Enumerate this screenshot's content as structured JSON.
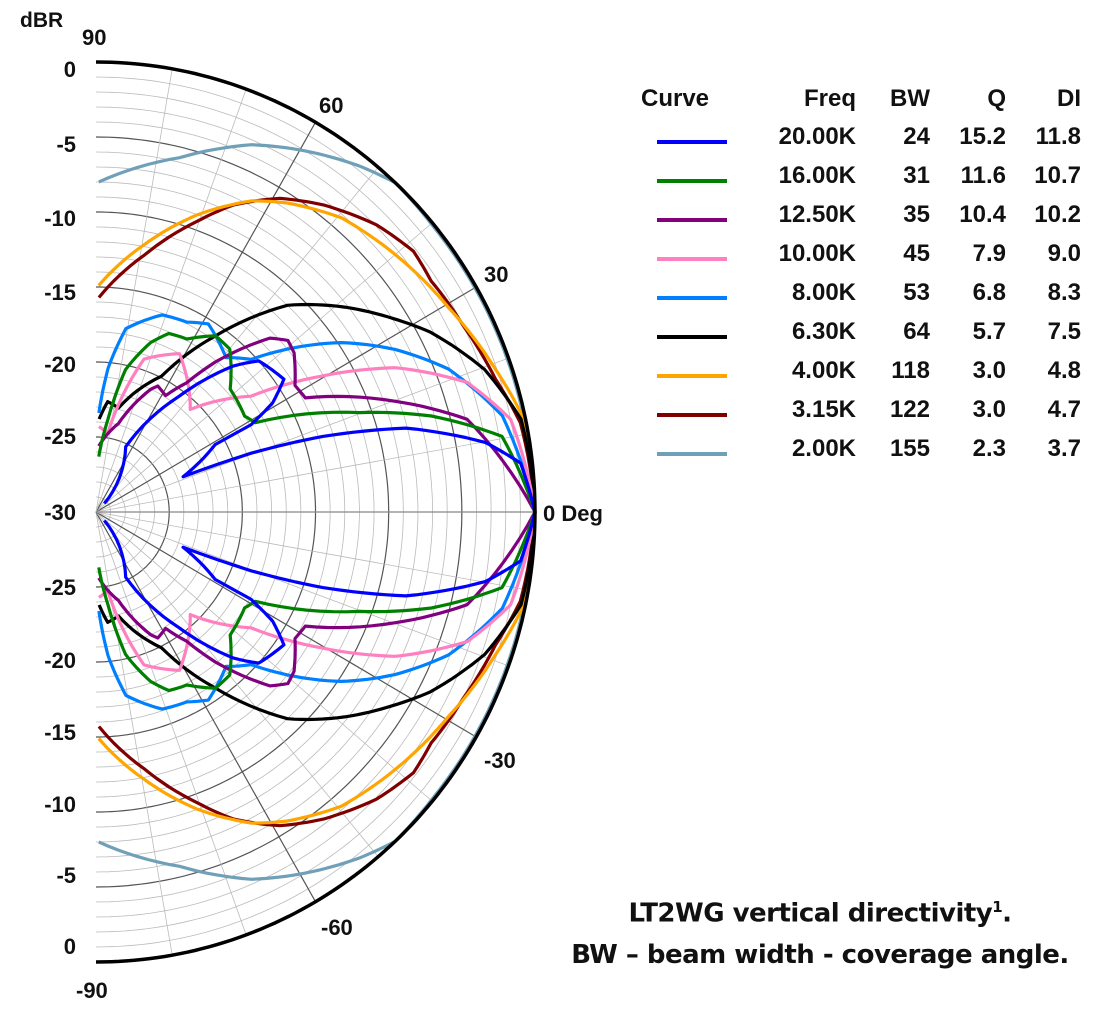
{
  "chart_data": {
    "type": "polar",
    "radial_label": "dBR",
    "radial_range": [
      -30,
      0
    ],
    "radial_tick_labels_upper": [
      "0",
      "-5",
      "-10",
      "-15",
      "-20",
      "-25"
    ],
    "radial_tick_label_center": "-30",
    "radial_tick_labels_lower": [
      "-25",
      "-20",
      "-15",
      "-10",
      "-5",
      "0"
    ],
    "angle_range": [
      -90,
      90
    ],
    "angle_tick_labels": {
      "a90": "90",
      "a60": "60",
      "a30": "30",
      "a0": "0 Deg",
      "am30": "-30",
      "am60": "-60",
      "am90": "-90"
    },
    "grid": true,
    "legend": {
      "headers": {
        "curve": "Curve",
        "freq": "Freq",
        "bw": "BW",
        "q": "Q",
        "di": "DI"
      },
      "placement": "right"
    },
    "series": [
      {
        "name": "20.00K",
        "bw": "24",
        "q": "15.2",
        "di": "11.8",
        "color": "#0000ff",
        "upper": [
          [
            45,
            -29.2
          ],
          [
            65,
            -25.2
          ],
          [
            53.6,
            -20.4
          ],
          [
            46.1,
            -16.5
          ],
          [
            42.2,
            -15
          ],
          [
            34.6,
            -14.4
          ],
          [
            31.1,
            -15.9
          ],
          [
            28.8,
            -17.9
          ],
          [
            28.9,
            -20.7
          ],
          [
            21.6,
            -23.6
          ],
          [
            20.3,
            -18.7
          ],
          [
            18,
            -13.7
          ],
          [
            14.8,
            -8.1
          ],
          [
            9.9,
            -3
          ],
          [
            6.4,
            -0.8
          ],
          [
            0,
            0
          ]
        ],
        "lower": [
          [
            -45,
            -29.2
          ],
          [
            -65,
            -25.2
          ],
          [
            -53.6,
            -20.4
          ],
          [
            -46.1,
            -16.5
          ],
          [
            -42.2,
            -15
          ],
          [
            -34.6,
            -14.4
          ],
          [
            -31.1,
            -15.9
          ],
          [
            -28.8,
            -17.9
          ],
          [
            -28.9,
            -20.7
          ],
          [
            -21.6,
            -23.6
          ],
          [
            -20.3,
            -18.7
          ],
          [
            -18,
            -13.7
          ],
          [
            -14.8,
            -8.1
          ],
          [
            -9.9,
            -3
          ],
          [
            -6.4,
            -0.8
          ],
          [
            0,
            0
          ]
        ]
      },
      {
        "name": "16.00K",
        "bw": "31",
        "q": "11.6",
        "di": "10.7",
        "color": "#008000",
        "upper": [
          [
            87,
            -26.3
          ],
          [
            82.5,
            -23.8
          ],
          [
            78,
            -20.3
          ],
          [
            71.7,
            -18.1
          ],
          [
            67.3,
            -17.1
          ],
          [
            61.7,
            -16.9
          ],
          [
            55.2,
            -15.7
          ],
          [
            49.9,
            -15.8
          ],
          [
            41.8,
            -17.7
          ],
          [
            32.2,
            -18
          ],
          [
            28.7,
            -17.6
          ],
          [
            20.2,
            -10.8
          ],
          [
            15.6,
            -6.2
          ],
          [
            10.3,
            -1.8
          ],
          [
            0,
            0
          ]
        ],
        "lower": [
          [
            -87,
            -26.3
          ],
          [
            -82.5,
            -23.8
          ],
          [
            -78,
            -20.3
          ],
          [
            -71.7,
            -18.1
          ],
          [
            -67.3,
            -17.1
          ],
          [
            -61.7,
            -16.9
          ],
          [
            -55.2,
            -15.7
          ],
          [
            -49.9,
            -15.8
          ],
          [
            -41.8,
            -17.7
          ],
          [
            -32.2,
            -18
          ],
          [
            -28.7,
            -17.6
          ],
          [
            -20.2,
            -10.8
          ],
          [
            -15.6,
            -6.2
          ],
          [
            -10.3,
            -1.8
          ],
          [
            0,
            0
          ]
        ]
      },
      {
        "name": "12.50K",
        "bw": "35",
        "q": "10.4",
        "di": "10.2",
        "color": "#800080",
        "upper": [
          [
            87.5,
            -25.6
          ],
          [
            75.4,
            -23.9
          ],
          [
            65.4,
            -21
          ],
          [
            63.3,
            -20.6
          ],
          [
            58.5,
            -20.9
          ],
          [
            54.3,
            -19.4
          ],
          [
            50.8,
            -17.1
          ],
          [
            44.3,
            -13.4
          ],
          [
            41.1,
            -12.6
          ],
          [
            38.1,
            -12.8
          ],
          [
            31.8,
            -14
          ],
          [
            28,
            -13.8
          ],
          [
            19.9,
            -8.3
          ],
          [
            13.7,
            -3.9
          ],
          [
            0,
            0
          ]
        ],
        "lower": [
          [
            -87.5,
            -25.6
          ],
          [
            -75.4,
            -23.9
          ],
          [
            -65.4,
            -21
          ],
          [
            -63.3,
            -20.6
          ],
          [
            -58.5,
            -20.9
          ],
          [
            -54.3,
            -19.4
          ],
          [
            -50.8,
            -17.1
          ],
          [
            -44.3,
            -13.4
          ],
          [
            -41.1,
            -12.6
          ],
          [
            -38.1,
            -12.8
          ],
          [
            -31.8,
            -14
          ],
          [
            -28,
            -13.8
          ],
          [
            -19.9,
            -8.3
          ],
          [
            -13.7,
            -3.9
          ],
          [
            0,
            0
          ]
        ]
      },
      {
        "name": "10.00K",
        "bw": "45",
        "q": "7.9",
        "di": "9.0",
        "color": "#ff80c0",
        "upper": [
          [
            88,
            -24.3
          ],
          [
            81.3,
            -24.7
          ],
          [
            72.2,
            -19.3
          ],
          [
            61.6,
            -18
          ],
          [
            46.7,
            -20.6
          ],
          [
            36.1,
            -16.9
          ],
          [
            30.3,
            -12
          ],
          [
            25.2,
            -7.4
          ],
          [
            18.8,
            -3.2
          ],
          [
            12.3,
            -1
          ],
          [
            0,
            0
          ]
        ],
        "lower": [
          [
            -88,
            -24.3
          ],
          [
            -81.3,
            -24.7
          ],
          [
            -72.2,
            -19.3
          ],
          [
            -61.6,
            -18
          ],
          [
            -46.7,
            -20.6
          ],
          [
            -36.1,
            -16.9
          ],
          [
            -30.3,
            -12
          ],
          [
            -25.2,
            -7.4
          ],
          [
            -18.8,
            -3.2
          ],
          [
            -12.3,
            -1
          ],
          [
            0,
            0
          ]
        ]
      },
      {
        "name": "8.00K",
        "bw": "53",
        "q": "6.8",
        "di": "8.3",
        "color": "#0080ff",
        "upper": [
          [
            88.3,
            -23.4
          ],
          [
            85.1,
            -20.4
          ],
          [
            80.5,
            -17.6
          ],
          [
            71,
            -16.1
          ],
          [
            63.9,
            -15.9
          ],
          [
            58.5,
            -15.3
          ],
          [
            49.2,
            -16.4
          ],
          [
            43.8,
            -15.3
          ],
          [
            39.7,
            -13
          ],
          [
            34,
            -9.8
          ],
          [
            28,
            -6.9
          ],
          [
            21.6,
            -4.1
          ],
          [
            13,
            -1.5
          ],
          [
            0,
            0
          ]
        ],
        "lower": [
          [
            -88.3,
            -23.4
          ],
          [
            -85.1,
            -20.4
          ],
          [
            -80.5,
            -17.6
          ],
          [
            -71,
            -16.1
          ],
          [
            -63.9,
            -15.9
          ],
          [
            -58.5,
            -15.3
          ],
          [
            -49.2,
            -16.4
          ],
          [
            -43.8,
            -15.3
          ],
          [
            -39.7,
            -13
          ],
          [
            -34,
            -9.8
          ],
          [
            -28,
            -6.9
          ],
          [
            -21.6,
            -4.1
          ],
          [
            -13,
            -1.5
          ],
          [
            0,
            0
          ]
        ]
      },
      {
        "name": "6.30K",
        "bw": "64",
        "q": "5.7",
        "di": "7.5",
        "color": "#000000",
        "upper": [
          [
            88,
            -23.8
          ],
          [
            83.8,
            -22.6
          ],
          [
            77.5,
            -22.9
          ],
          [
            63.7,
            -19.9
          ],
          [
            55.2,
            -15.7
          ],
          [
            46.5,
            -11
          ],
          [
            38.8,
            -8.2
          ],
          [
            32.3,
            -5.9
          ],
          [
            27.7,
            -4.2
          ],
          [
            19.7,
            -1.8
          ],
          [
            12,
            -0.3
          ],
          [
            0,
            0
          ]
        ],
        "lower": [
          [
            -88,
            -23.8
          ],
          [
            -83.8,
            -22.6
          ],
          [
            -77.5,
            -22.9
          ],
          [
            -63.7,
            -19.9
          ],
          [
            -55.2,
            -15.7
          ],
          [
            -46.5,
            -11
          ],
          [
            -38.8,
            -8.2
          ],
          [
            -32.3,
            -5.9
          ],
          [
            -27.7,
            -4.2
          ],
          [
            -19.7,
            -1.8
          ],
          [
            -12,
            -0.3
          ],
          [
            0,
            0
          ]
        ]
      },
      {
        "name": "4.00K",
        "bw": "118",
        "q": "3.0",
        "di": "4.8",
        "color": "#ffa500",
        "upper": [
          [
            89.3,
            -14.9
          ],
          [
            79.6,
            -11.9
          ],
          [
            70.7,
            -9
          ],
          [
            62.9,
            -6.7
          ],
          [
            57.6,
            -5.6
          ],
          [
            49.5,
            -4.2
          ],
          [
            40,
            -3.3
          ],
          [
            29.3,
            -2.3
          ],
          [
            19.3,
            -1.1
          ],
          [
            11.9,
            -0.1
          ],
          [
            0,
            0
          ]
        ],
        "lower": [
          [
            -89.3,
            -14.9
          ],
          [
            -79.6,
            -11.9
          ],
          [
            -70.7,
            -9
          ],
          [
            -62.9,
            -6.7
          ],
          [
            -57.6,
            -5.6
          ],
          [
            -49.5,
            -4.2
          ],
          [
            -40,
            -3.3
          ],
          [
            -29.3,
            -2.3
          ],
          [
            -19.3,
            -1.1
          ],
          [
            -11.9,
            -0.1
          ],
          [
            0,
            0
          ]
        ]
      },
      {
        "name": "3.15K",
        "bw": "122",
        "q": "3.0",
        "di": "4.7",
        "color": "#800000",
        "upper": [
          [
            89.2,
            -15.7
          ],
          [
            79.2,
            -12.6
          ],
          [
            70.3,
            -9.4
          ],
          [
            65.4,
            -7.5
          ],
          [
            59,
            -5.6
          ],
          [
            52.8,
            -4.3
          ],
          [
            44.9,
            -2.9
          ],
          [
            38.7,
            -2.2
          ],
          [
            33.9,
            -2.4
          ],
          [
            26.4,
            -2
          ],
          [
            18,
            -1.3
          ],
          [
            11.6,
            -0.4
          ],
          [
            0,
            0
          ]
        ],
        "lower": [
          [
            -89.2,
            -15.7
          ],
          [
            -79.2,
            -12.6
          ],
          [
            -70.3,
            -9.4
          ],
          [
            -65.4,
            -7.5
          ],
          [
            -59,
            -5.6
          ],
          [
            -52.8,
            -4.3
          ],
          [
            -44.9,
            -2.9
          ],
          [
            -38.7,
            -2.2
          ],
          [
            -33.9,
            -2.4
          ],
          [
            -26.4,
            -2
          ],
          [
            -18,
            -1.3
          ],
          [
            -11.6,
            -0.4
          ],
          [
            0,
            0
          ]
        ]
      },
      {
        "name": "2.00K",
        "bw": "155",
        "q": "2.3",
        "di": "3.7",
        "color": "#6fa0b8",
        "upper": [
          [
            89.5,
            -8
          ],
          [
            76.4,
            -5.7
          ],
          [
            66.5,
            -3.3
          ],
          [
            59.3,
            -2
          ],
          [
            52.1,
            -0.75
          ],
          [
            47,
            0
          ],
          [
            40,
            -0.1
          ],
          [
            30,
            -0.1
          ],
          [
            20,
            -0.1
          ],
          [
            10,
            -0.1
          ],
          [
            0,
            0
          ]
        ],
        "lower": [
          [
            -89.5,
            -8
          ],
          [
            -76.4,
            -5.7
          ],
          [
            -66.5,
            -3.3
          ],
          [
            -59.3,
            -2
          ],
          [
            -52.1,
            -0.75
          ],
          [
            -47,
            0
          ],
          [
            -40,
            -0.1
          ],
          [
            -30,
            -0.1
          ],
          [
            -20,
            -0.1
          ],
          [
            -10,
            -0.1
          ],
          [
            0,
            0
          ]
        ]
      }
    ]
  },
  "caption": {
    "line1": "LT2WG vertical directivity",
    "line1_sup": "1",
    "line1_end": ".",
    "line2": "BW – beam width - coverage angle."
  }
}
